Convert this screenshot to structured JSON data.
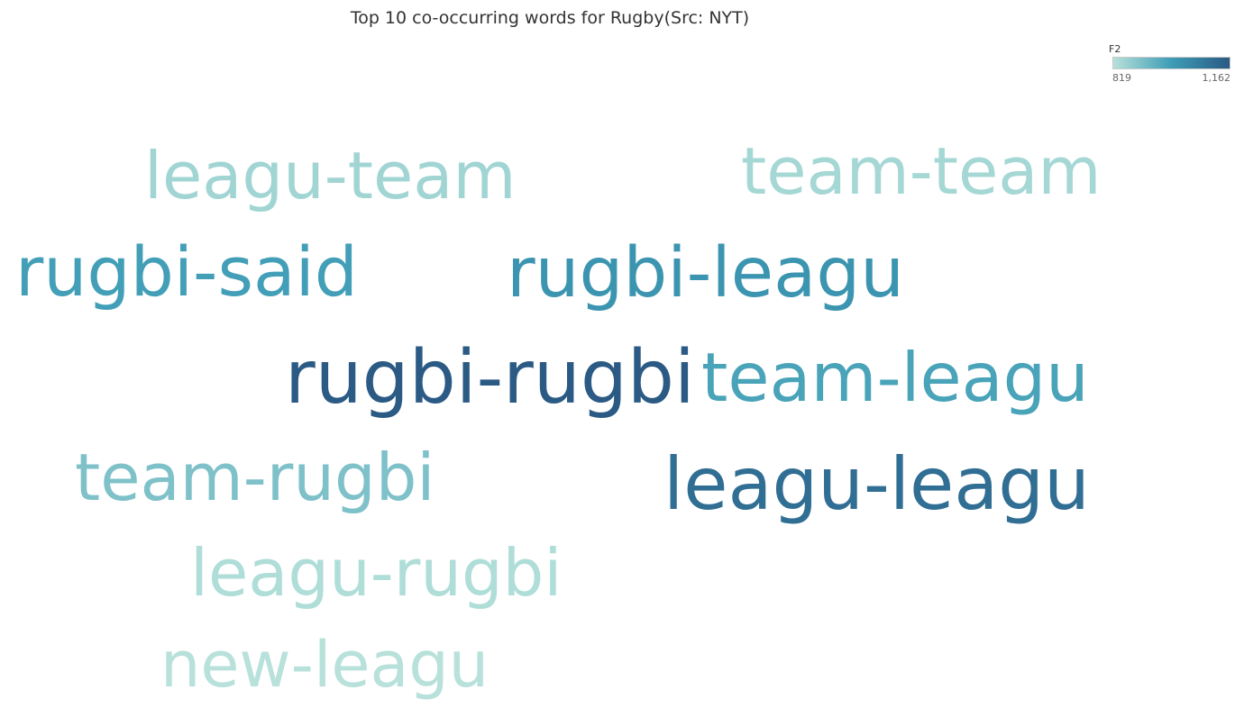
{
  "chart_data": {
    "type": "wordcloud",
    "title": "Top 10 co-occurring words for Rugby(Src: NYT)",
    "legend": {
      "title": "F2",
      "min_label": "819",
      "max_label": "1,162",
      "min": 819,
      "max": 1162,
      "color_low": "#b7e1da",
      "color_mid": "#3e9db6",
      "color_high": "#2b5a84",
      "placement": "top-right"
    },
    "words": [
      {
        "text": "rugbi-rugbi",
        "value": 1162
      },
      {
        "text": "leagu-leagu",
        "value": 1110
      },
      {
        "text": "rugbi-leagu",
        "value": 1010
      },
      {
        "text": "rugbi-said",
        "value": 985
      },
      {
        "text": "team-leagu",
        "value": 975
      },
      {
        "text": "team-rugbi",
        "value": 900
      },
      {
        "text": "leagu-team",
        "value": 850
      },
      {
        "text": "team-team",
        "value": 845
      },
      {
        "text": "leagu-rugbi",
        "value": 830
      },
      {
        "text": "new-leagu",
        "value": 819
      }
    ]
  }
}
